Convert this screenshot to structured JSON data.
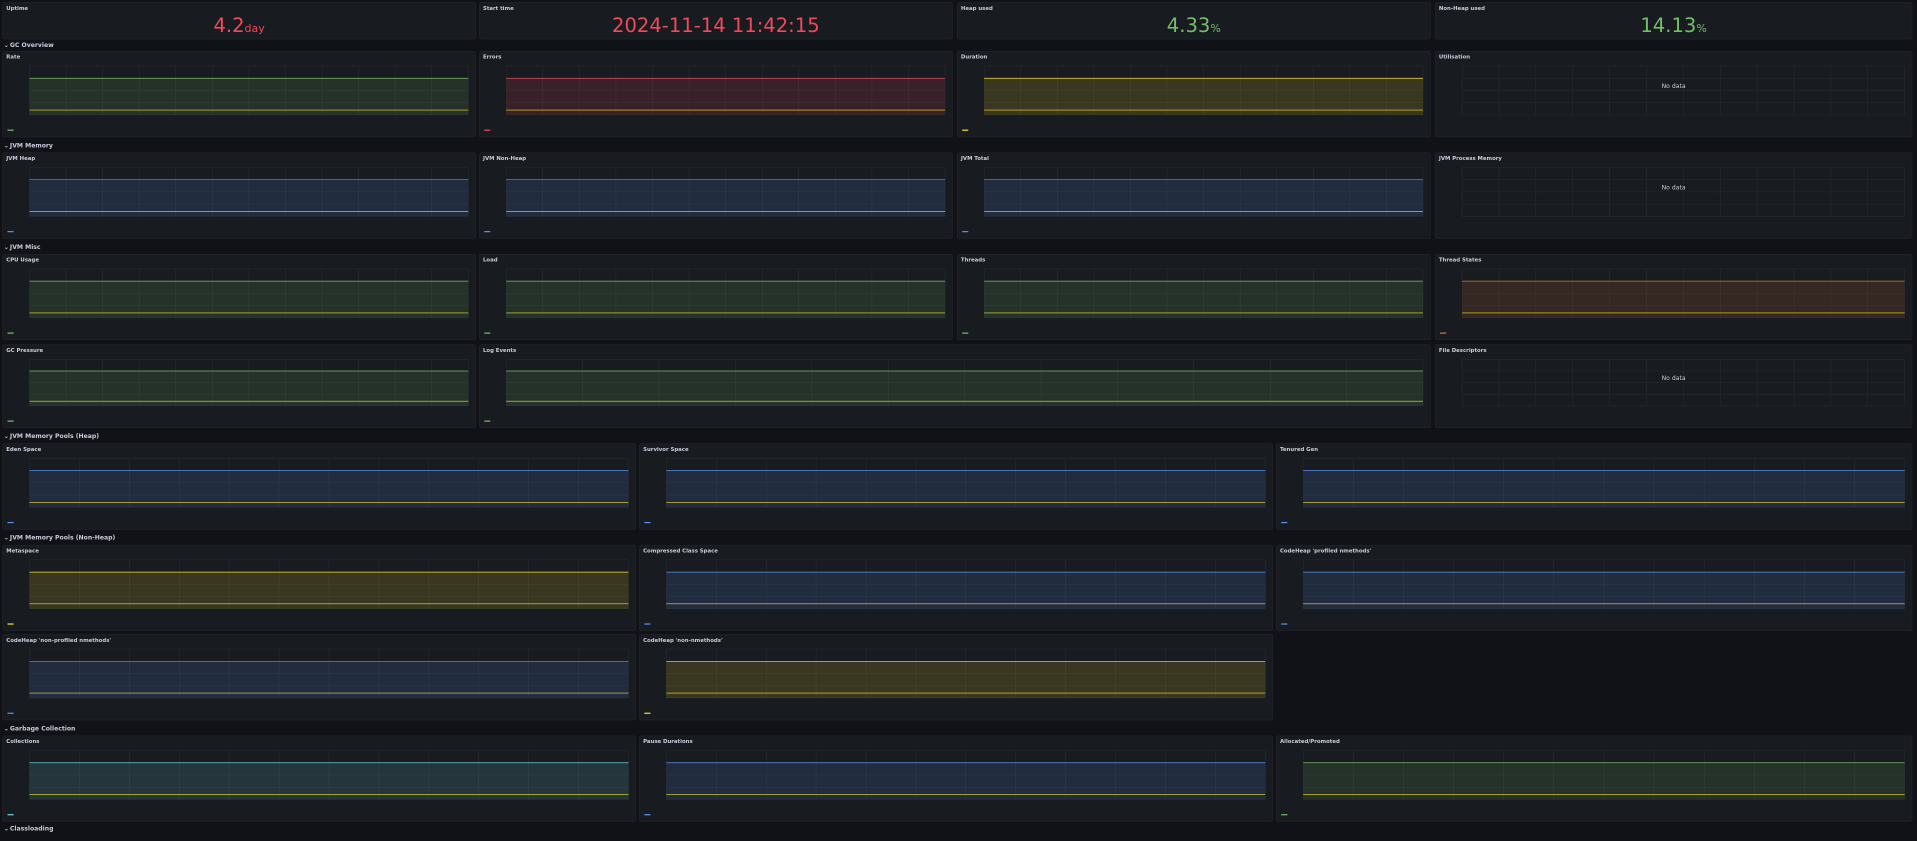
{
  "stats": [
    {
      "title": "Uptime",
      "value": 4.2,
      "unit": "day",
      "color": "#f2495c"
    },
    {
      "title": "Start time",
      "value": "2024-11-14 11:42:15",
      "color": "#f2495c"
    },
    {
      "title": "Heap used",
      "value": 4.33,
      "unit": "%",
      "color": "#73bf69"
    },
    {
      "title": "Non-Heap used",
      "value": 14.13,
      "unit": "%",
      "color": "#73bf69"
    }
  ],
  "sections": [
    {
      "title": "GC Overview",
      "panels": [
        {
          "title": "Rate"
        },
        {
          "title": "Errors"
        },
        {
          "title": "Duration"
        },
        {
          "title": "Utilisation",
          "message": "No data"
        }
      ]
    },
    {
      "title": "JVM Memory",
      "panels": [
        {
          "title": "JVM Heap"
        },
        {
          "title": "JVM Non-Heap"
        },
        {
          "title": "JVM Total"
        },
        {
          "title": "JVM Process Memory",
          "message": "No data"
        }
      ]
    },
    {
      "title": "JVM Misc",
      "panels": [
        {
          "title": "CPU Usage"
        },
        {
          "title": "Load"
        },
        {
          "title": "Threads"
        },
        {
          "title": "Thread States"
        },
        {
          "title": "GC Pressure"
        },
        {
          "title": "Log Events"
        },
        {
          "title": "File Descriptors",
          "message": "No data"
        }
      ]
    },
    {
      "title": "JVM Memory Pools (Heap)",
      "panels": [
        {
          "title": "Eden Space"
        },
        {
          "title": "Survivor Space"
        },
        {
          "title": "Tenured Gen"
        }
      ]
    },
    {
      "title": "JVM Memory Pools (Non-Heap)",
      "panels": [
        {
          "title": "Metaspace"
        },
        {
          "title": "Compressed Class Space"
        },
        {
          "title": "CodeHeap 'profiled nmethods'"
        },
        {
          "title": "CodeHeap 'non-profiled nmethods'"
        },
        {
          "title": "CodeHeap 'non-nmethods'"
        }
      ]
    },
    {
      "title": "Garbage Collection",
      "panels": [
        {
          "title": "Collections"
        },
        {
          "title": "Pause Durations"
        },
        {
          "title": "Allocated/Promoted"
        }
      ]
    },
    {
      "title": "Classloading",
      "panels": []
    }
  ]
}
